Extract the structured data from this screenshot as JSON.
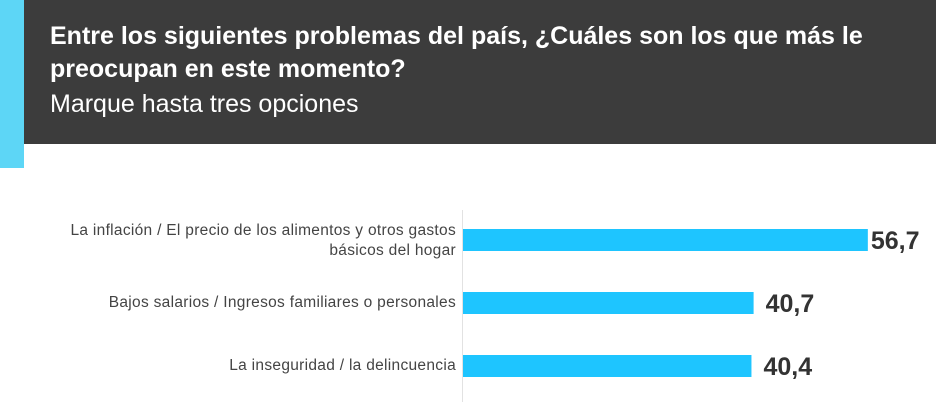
{
  "header": {
    "title": "Entre los siguientes problemas del país, ¿Cuáles son los que más le preocupan en este momento?",
    "subtitle": "Marque hasta tres opciones"
  },
  "colors": {
    "bar": "#1ec5ff",
    "header_bg": "#3c3c3c",
    "accent": "#5dd6f6",
    "value_text": "#333333"
  },
  "chart_data": {
    "type": "bar",
    "orientation": "horizontal",
    "categories": [
      "La inflación / El precio de los alimentos y otros gastos básicos del hogar",
      "Bajos salarios / Ingresos familiares o personales",
      "La inseguridad / la delincuencia"
    ],
    "values": [
      56.7,
      40.7,
      40.4
    ],
    "value_labels": [
      "56,7",
      "40,7",
      "40,4"
    ],
    "grid": false
  }
}
